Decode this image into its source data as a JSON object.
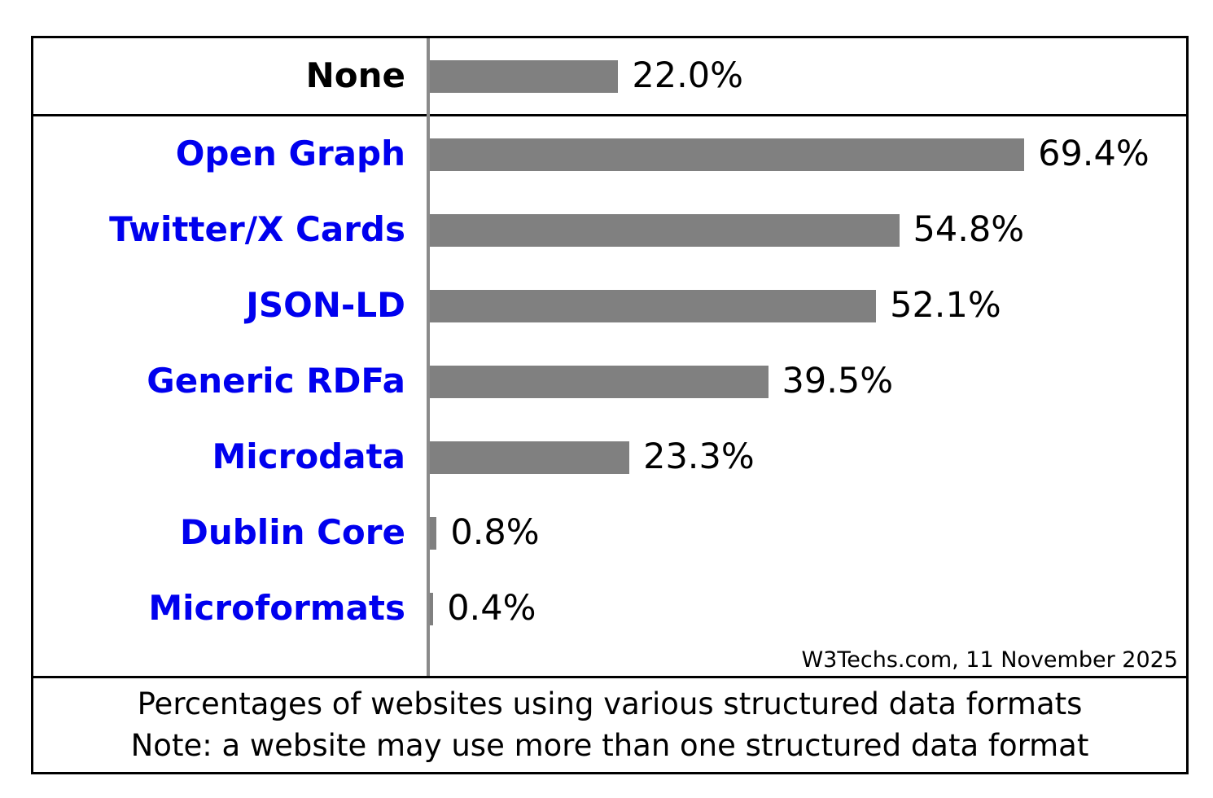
{
  "chart_data": {
    "type": "bar",
    "orientation": "horizontal",
    "title": "Percentages of websites using various structured data formats",
    "note": "Note: a website may use more than one structured data format",
    "source": "W3Techs.com, 11 November 2025",
    "xlim": [
      0,
      100
    ],
    "grid": false,
    "legend": "none",
    "bar_color": "#808080",
    "axis_line_color": "#8a8a8a",
    "category_link_color": "#0000EE",
    "categories": [
      "None",
      "Open Graph",
      "Twitter/X Cards",
      "JSON-LD",
      "Generic RDFa",
      "Microdata",
      "Dublin Core",
      "Microformats"
    ],
    "values": [
      22.0,
      69.4,
      54.8,
      52.1,
      39.5,
      23.3,
      0.8,
      0.4
    ],
    "value_labels": [
      "22.0%",
      "69.4%",
      "54.8%",
      "52.1%",
      "39.5%",
      "23.3%",
      "0.8%",
      "0.4%"
    ]
  }
}
